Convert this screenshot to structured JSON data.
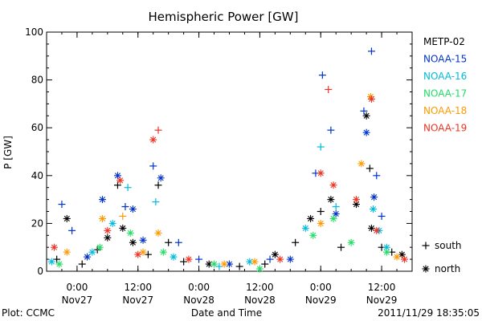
{
  "chart_data": {
    "type": "scatter",
    "title": "Hemispheric Power [GW]",
    "ylabel": "P [GW]",
    "xlabel": "Date and Time",
    "ylim": [
      0,
      100
    ],
    "yticks": [
      0,
      20,
      40,
      60,
      80,
      100
    ],
    "xlim": [
      "2011-11-26 18:00",
      "2011-11-29 18:00"
    ],
    "xticks": [
      {
        "time": "2011-11-27 00:00",
        "line1": "0:00",
        "line2": "Nov27"
      },
      {
        "time": "2011-11-27 12:00",
        "line1": "12:00",
        "line2": "Nov27"
      },
      {
        "time": "2011-11-28 00:00",
        "line1": "0:00",
        "line2": "Nov28"
      },
      {
        "time": "2011-11-28 12:00",
        "line1": "12:00",
        "line2": "Nov28"
      },
      {
        "time": "2011-11-29 00:00",
        "line1": "0:00",
        "line2": "Nov29"
      },
      {
        "time": "2011-11-29 12:00",
        "line1": "12:00",
        "line2": "Nov29"
      }
    ],
    "legend_position": "right",
    "marker_legend": [
      {
        "marker": "+",
        "label": "south"
      },
      {
        "marker": "*",
        "label": "north"
      }
    ],
    "series": [
      {
        "name": "METP-02",
        "color": "#000000",
        "points": [
          {
            "t": "2011-11-26 20:00",
            "v": 5,
            "m": "+"
          },
          {
            "t": "2011-11-26 22:00",
            "v": 22,
            "m": "*"
          },
          {
            "t": "2011-11-27 01:00",
            "v": 3,
            "m": "+"
          },
          {
            "t": "2011-11-27 04:00",
            "v": 9,
            "m": "+"
          },
          {
            "t": "2011-11-27 06:00",
            "v": 14,
            "m": "*"
          },
          {
            "t": "2011-11-27 08:00",
            "v": 36,
            "m": "+"
          },
          {
            "t": "2011-11-27 09:00",
            "v": 18,
            "m": "*"
          },
          {
            "t": "2011-11-27 11:00",
            "v": 12,
            "m": "*"
          },
          {
            "t": "2011-11-27 14:00",
            "v": 7,
            "m": "+"
          },
          {
            "t": "2011-11-27 16:00",
            "v": 36,
            "m": "+"
          },
          {
            "t": "2011-11-27 18:00",
            "v": 12,
            "m": "+"
          },
          {
            "t": "2011-11-27 21:00",
            "v": 4,
            "m": "+"
          },
          {
            "t": "2011-11-28 02:00",
            "v": 3,
            "m": "*"
          },
          {
            "t": "2011-11-28 08:00",
            "v": 2,
            "m": "+"
          },
          {
            "t": "2011-11-28 13:00",
            "v": 3,
            "m": "+"
          },
          {
            "t": "2011-11-28 15:00",
            "v": 7,
            "m": "*"
          },
          {
            "t": "2011-11-28 19:00",
            "v": 12,
            "m": "+"
          },
          {
            "t": "2011-11-28 22:00",
            "v": 22,
            "m": "*"
          },
          {
            "t": "2011-11-29 00:00",
            "v": 25,
            "m": "+"
          },
          {
            "t": "2011-11-29 02:00",
            "v": 30,
            "m": "*"
          },
          {
            "t": "2011-11-29 04:00",
            "v": 10,
            "m": "+"
          },
          {
            "t": "2011-11-29 07:00",
            "v": 28,
            "m": "*"
          },
          {
            "t": "2011-11-29 09:00",
            "v": 65,
            "m": "*"
          },
          {
            "t": "2011-11-29 09:40",
            "v": 43,
            "m": "+"
          },
          {
            "t": "2011-11-29 10:00",
            "v": 18,
            "m": "*"
          },
          {
            "t": "2011-11-29 12:00",
            "v": 10,
            "m": "+"
          },
          {
            "t": "2011-11-29 14:00",
            "v": 8,
            "m": "+"
          },
          {
            "t": "2011-11-29 16:00",
            "v": 7,
            "m": "*"
          }
        ]
      },
      {
        "name": "NOAA-15",
        "color": "#0033cc",
        "points": [
          {
            "t": "2011-11-26 21:00",
            "v": 28,
            "m": "+"
          },
          {
            "t": "2011-11-26 23:00",
            "v": 17,
            "m": "+"
          },
          {
            "t": "2011-11-27 02:00",
            "v": 6,
            "m": "*"
          },
          {
            "t": "2011-11-27 05:00",
            "v": 30,
            "m": "*"
          },
          {
            "t": "2011-11-27 08:00",
            "v": 40,
            "m": "*"
          },
          {
            "t": "2011-11-27 09:30",
            "v": 27,
            "m": "+"
          },
          {
            "t": "2011-11-27 11:00",
            "v": 26,
            "m": "*"
          },
          {
            "t": "2011-11-27 13:00",
            "v": 13,
            "m": "*"
          },
          {
            "t": "2011-11-27 15:00",
            "v": 44,
            "m": "+"
          },
          {
            "t": "2011-11-27 16:30",
            "v": 39,
            "m": "*"
          },
          {
            "t": "2011-11-27 20:00",
            "v": 12,
            "m": "+"
          },
          {
            "t": "2011-11-28 00:00",
            "v": 5,
            "m": "+"
          },
          {
            "t": "2011-11-28 06:00",
            "v": 3,
            "m": "*"
          },
          {
            "t": "2011-11-28 14:00",
            "v": 5,
            "m": "+"
          },
          {
            "t": "2011-11-28 18:00",
            "v": 5,
            "m": "*"
          },
          {
            "t": "2011-11-28 23:00",
            "v": 41,
            "m": "+"
          },
          {
            "t": "2011-11-29 00:20",
            "v": 82,
            "m": "+"
          },
          {
            "t": "2011-11-29 02:00",
            "v": 59,
            "m": "+"
          },
          {
            "t": "2011-11-29 03:00",
            "v": 24,
            "m": "*"
          },
          {
            "t": "2011-11-29 08:30",
            "v": 67,
            "m": "+"
          },
          {
            "t": "2011-11-29 09:00",
            "v": 58,
            "m": "*"
          },
          {
            "t": "2011-11-29 10:00",
            "v": 92,
            "m": "+"
          },
          {
            "t": "2011-11-29 11:00",
            "v": 40,
            "m": "+"
          },
          {
            "t": "2011-11-29 12:00",
            "v": 23,
            "m": "+"
          },
          {
            "t": "2011-11-29 10:30",
            "v": 31,
            "m": "*"
          }
        ]
      },
      {
        "name": "NOAA-16",
        "color": "#00bbdd",
        "points": [
          {
            "t": "2011-11-26 19:00",
            "v": 4,
            "m": "*"
          },
          {
            "t": "2011-11-27 03:00",
            "v": 8,
            "m": "*"
          },
          {
            "t": "2011-11-27 07:00",
            "v": 20,
            "m": "*"
          },
          {
            "t": "2011-11-27 10:00",
            "v": 35,
            "m": "+"
          },
          {
            "t": "2011-11-27 15:30",
            "v": 29,
            "m": "+"
          },
          {
            "t": "2011-11-27 19:00",
            "v": 6,
            "m": "*"
          },
          {
            "t": "2011-11-28 04:00",
            "v": 2,
            "m": "+"
          },
          {
            "t": "2011-11-28 10:00",
            "v": 4,
            "m": "*"
          },
          {
            "t": "2011-11-28 21:00",
            "v": 18,
            "m": "*"
          },
          {
            "t": "2011-11-29 00:00",
            "v": 52,
            "m": "+"
          },
          {
            "t": "2011-11-29 03:00",
            "v": 27,
            "m": "+"
          },
          {
            "t": "2011-11-29 10:20",
            "v": 26,
            "m": "*"
          },
          {
            "t": "2011-11-29 11:30",
            "v": 17,
            "m": "*"
          },
          {
            "t": "2011-11-29 13:00",
            "v": 10,
            "m": "*"
          }
        ]
      },
      {
        "name": "NOAA-17",
        "color": "#22dd66",
        "points": [
          {
            "t": "2011-11-26 20:30",
            "v": 3,
            "m": "*"
          },
          {
            "t": "2011-11-27 04:30",
            "v": 10,
            "m": "*"
          },
          {
            "t": "2011-11-27 10:30",
            "v": 16,
            "m": "*"
          },
          {
            "t": "2011-11-27 17:00",
            "v": 8,
            "m": "*"
          },
          {
            "t": "2011-11-28 03:00",
            "v": 3,
            "m": "*"
          },
          {
            "t": "2011-11-28 12:00",
            "v": 1,
            "m": "*"
          },
          {
            "t": "2011-11-28 22:30",
            "v": 15,
            "m": "*"
          },
          {
            "t": "2011-11-29 02:30",
            "v": 22,
            "m": "*"
          },
          {
            "t": "2011-11-29 06:00",
            "v": 12,
            "m": "*"
          },
          {
            "t": "2011-11-29 13:00",
            "v": 8,
            "m": "*"
          }
        ]
      },
      {
        "name": "NOAA-18",
        "color": "#ff9900",
        "points": [
          {
            "t": "2011-11-26 22:00",
            "v": 8,
            "m": "*"
          },
          {
            "t": "2011-11-27 05:00",
            "v": 22,
            "m": "*"
          },
          {
            "t": "2011-11-27 09:00",
            "v": 23,
            "m": "+"
          },
          {
            "t": "2011-11-27 13:00",
            "v": 8,
            "m": "*"
          },
          {
            "t": "2011-11-27 16:00",
            "v": 16,
            "m": "*"
          },
          {
            "t": "2011-11-28 05:00",
            "v": 3,
            "m": "*"
          },
          {
            "t": "2011-11-28 11:00",
            "v": 4,
            "m": "*"
          },
          {
            "t": "2011-11-29 00:00",
            "v": 20,
            "m": "*"
          },
          {
            "t": "2011-11-29 08:00",
            "v": 45,
            "m": "*"
          },
          {
            "t": "2011-11-29 09:50",
            "v": 73,
            "m": "*"
          },
          {
            "t": "2011-11-29 15:00",
            "v": 6,
            "m": "*"
          }
        ]
      },
      {
        "name": "NOAA-19",
        "color": "#ee3322",
        "points": [
          {
            "t": "2011-11-26 19:30",
            "v": 10,
            "m": "*"
          },
          {
            "t": "2011-11-27 06:00",
            "v": 17,
            "m": "*"
          },
          {
            "t": "2011-11-27 08:30",
            "v": 38,
            "m": "*"
          },
          {
            "t": "2011-11-27 12:00",
            "v": 7,
            "m": "*"
          },
          {
            "t": "2011-11-27 15:00",
            "v": 55,
            "m": "*"
          },
          {
            "t": "2011-11-27 16:00",
            "v": 59,
            "m": "+"
          },
          {
            "t": "2011-11-27 22:00",
            "v": 5,
            "m": "*"
          },
          {
            "t": "2011-11-28 16:00",
            "v": 5,
            "m": "*"
          },
          {
            "t": "2011-11-29 00:00",
            "v": 41,
            "m": "*"
          },
          {
            "t": "2011-11-29 01:30",
            "v": 76,
            "m": "+"
          },
          {
            "t": "2011-11-29 02:30",
            "v": 36,
            "m": "*"
          },
          {
            "t": "2011-11-29 07:00",
            "v": 30,
            "m": "*"
          },
          {
            "t": "2011-11-29 10:00",
            "v": 72,
            "m": "*"
          },
          {
            "t": "2011-11-29 11:00",
            "v": 17,
            "m": "*"
          },
          {
            "t": "2011-11-29 16:30",
            "v": 5,
            "m": "*"
          }
        ]
      }
    ]
  },
  "footer": {
    "left": "Plot: CCMC",
    "right": "2011/11/29 18:35:05"
  }
}
